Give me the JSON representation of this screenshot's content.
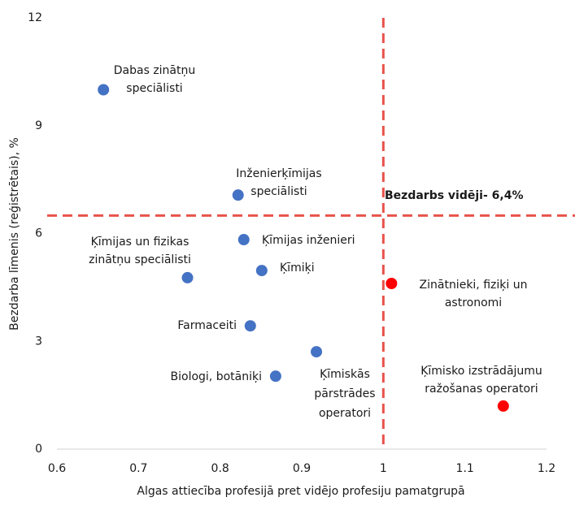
{
  "chart_data": {
    "type": "scatter",
    "x_label": "Algas attiecība profesijā pret vidējo profesiju pamatgrupā",
    "y_label": "Bezdarba līmenis (reģistrētais), %",
    "x": [
      0.657,
      0.822,
      0.829,
      0.851,
      0.76,
      0.837,
      0.868,
      0.918,
      1.01,
      1.147
    ],
    "values": [
      10.0,
      7.07,
      5.83,
      4.97,
      4.77,
      3.43,
      2.03,
      2.71,
      4.61,
      1.2
    ],
    "colors": [
      "#4472c4",
      "#4472c4",
      "#4472c4",
      "#4472c4",
      "#4472c4",
      "#4472c4",
      "#4472c4",
      "#4472c4",
      "#ff0000",
      "#ff0000"
    ],
    "labels": [
      [
        "Dabas zinātņu",
        "speciālisti"
      ],
      [
        "Inženierķīmijas",
        "speciālisti"
      ],
      [
        "Ķīmijas inženieri"
      ],
      [
        "Ķīmiķi"
      ],
      [
        "Ķīmijas un fizikas",
        "zinātņu speciālisti"
      ],
      [
        "Farmaceiti"
      ],
      [
        "Biologi, botāniķi"
      ],
      [
        "Ķīmiskās",
        "pārstrādes",
        "operatori"
      ],
      [
        "Zinātnieki, fiziķi un",
        "astronomi"
      ],
      [
        "Ķīmisko izstrādājumu",
        "ražošanas operatori"
      ]
    ],
    "xlim": [
      0.6,
      1.2
    ],
    "xticks": [
      0.6,
      0.7,
      0.8,
      0.9,
      1,
      1.1,
      1.2
    ],
    "ylim": [
      0,
      12
    ],
    "yticks": [
      0,
      3,
      6,
      9,
      12
    ],
    "ref_x": 1,
    "ref_y": 6.5,
    "ref_color": "#e8524a",
    "annotation": "Bezdarbs vidēji- 6,4%"
  }
}
